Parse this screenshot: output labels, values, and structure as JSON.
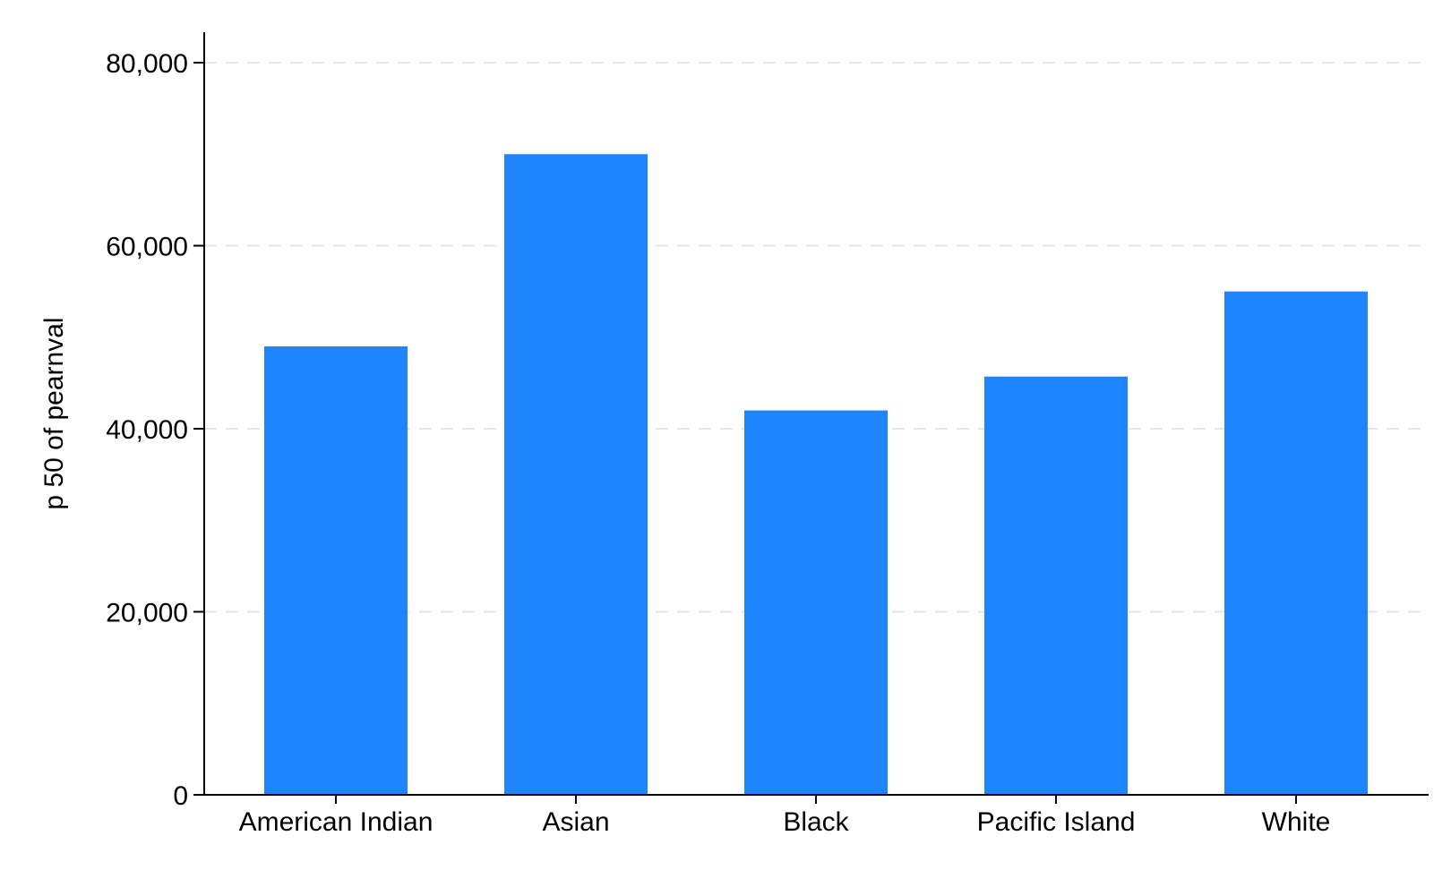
{
  "chart_data": {
    "type": "bar",
    "categories": [
      "American Indian",
      "Asian",
      "Black",
      "Pacific Island",
      "White"
    ],
    "values": [
      49000,
      70000,
      42000,
      45700,
      55000
    ],
    "title": "",
    "xlabel": "",
    "ylabel": "p 50 of pearnval",
    "ylim": [
      0,
      80000
    ],
    "yticks": [
      0,
      20000,
      40000,
      60000,
      80000
    ],
    "ytick_labels": [
      "0",
      "20,000",
      "40,000",
      "60,000",
      "80,000"
    ],
    "grid": true,
    "legend": "none",
    "bar_color": "#1e85ff"
  }
}
